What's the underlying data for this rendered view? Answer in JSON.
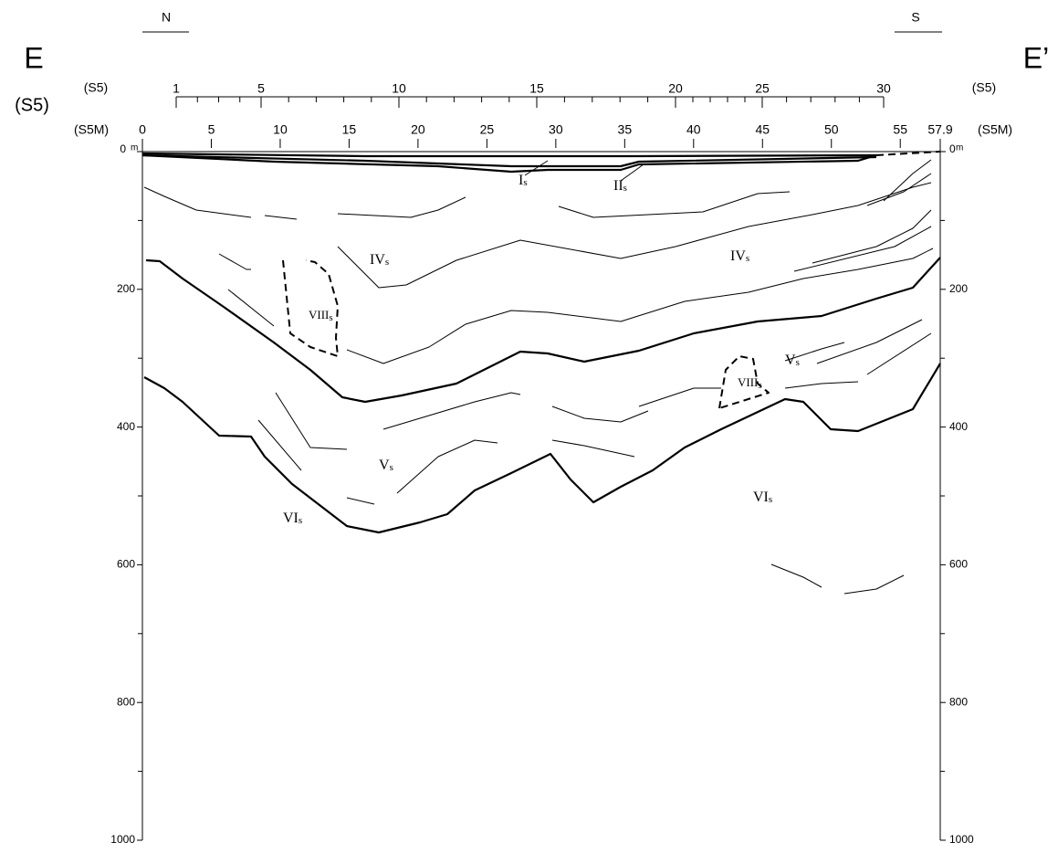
{
  "direction": {
    "left": "N",
    "right": "S"
  },
  "section": {
    "left": "E",
    "right": "E’",
    "left_sub": "(S5)"
  },
  "axes": {
    "s5_label": "(S5)",
    "s5m_label": "(S5M)",
    "depth_unit": "m",
    "s5_ticks": [
      1,
      5,
      10,
      15,
      20,
      25,
      30
    ],
    "s5m_ticks": [
      0,
      5,
      10,
      15,
      20,
      25,
      30,
      35,
      40,
      45,
      50,
      55,
      57.9
    ],
    "depth_ticks": [
      0,
      200,
      400,
      600,
      800,
      1000
    ]
  },
  "units": [
    {
      "numeral": "I",
      "suffix": "s"
    },
    {
      "numeral": "II",
      "suffix": "s"
    },
    {
      "numeral": "IV",
      "suffix": "s"
    },
    {
      "numeral": "IV",
      "suffix": "s"
    },
    {
      "numeral": "VIII",
      "suffix": "s"
    },
    {
      "numeral": "VIII",
      "suffix": "s"
    },
    {
      "numeral": "V",
      "suffix": "s"
    },
    {
      "numeral": "V",
      "suffix": "s"
    },
    {
      "numeral": "VI",
      "suffix": "s"
    },
    {
      "numeral": "VI",
      "suffix": "s"
    }
  ]
}
